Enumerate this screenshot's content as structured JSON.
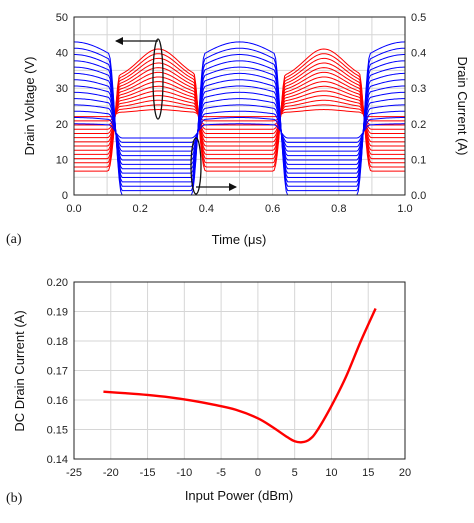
{
  "chart_data": [
    {
      "type": "line",
      "panel_label": "(a)",
      "xlabel": "Time (μs)",
      "ylabel_left": "Drain Voltage (V)",
      "ylabel_right": "Drain Current (A)",
      "xlim": [
        0,
        1.0
      ],
      "ylim_left": [
        0,
        50
      ],
      "ylim_right": [
        0,
        0.5
      ],
      "xticks": [
        "0.0",
        "0.2",
        "0.4",
        "0.6",
        "0.8",
        "1.0"
      ],
      "yticks_left": [
        "0",
        "10",
        "20",
        "30",
        "40",
        "50"
      ],
      "yticks_right": [
        "0.0",
        "0.1",
        "0.2",
        "0.3",
        "0.4",
        "0.5"
      ],
      "grid": true,
      "period_us": 0.5,
      "series": [
        {
          "quantity": "drain voltage",
          "color": "#ff0000",
          "num_curves": 14,
          "dc_level_V": 22,
          "peak_V_range": [
            24,
            41
          ],
          "trough_V_range": [
            4,
            22
          ]
        },
        {
          "quantity": "drain current",
          "color": "#0000ff",
          "num_curves": 14,
          "dc_level_A": 0.18,
          "peak_A_range": [
            0.2,
            0.43
          ],
          "trough_A_range": [
            0.0,
            0.16
          ]
        }
      ],
      "annotations": [
        "ellipse with arrow pointing left to the voltage axis",
        "ellipse with arrow pointing right to the current axis"
      ]
    },
    {
      "type": "line",
      "panel_label": "(b)",
      "xlabel": "Input Power (dBm)",
      "ylabel": "DC Drain Current (A)",
      "xlim": [
        -25,
        20
      ],
      "ylim": [
        0.14,
        0.2
      ],
      "xticks": [
        "-25",
        "-20",
        "-15",
        "-10",
        "-5",
        "0",
        "5",
        "10",
        "15",
        "20"
      ],
      "yticks": [
        "0.14",
        "0.15",
        "0.16",
        "0.17",
        "0.18",
        "0.19",
        "0.20"
      ],
      "grid": true,
      "color": "#ff0000",
      "x": [
        -21,
        -18,
        -15,
        -12,
        -9,
        -6,
        -3,
        0,
        2,
        4,
        5,
        6,
        7,
        8,
        10,
        12,
        14,
        16
      ],
      "y": [
        0.1628,
        0.1623,
        0.1617,
        0.1609,
        0.1598,
        0.1584,
        0.1567,
        0.1538,
        0.1508,
        0.1474,
        0.146,
        0.1457,
        0.1466,
        0.1494,
        0.158,
        0.168,
        0.18,
        0.191
      ]
    }
  ]
}
